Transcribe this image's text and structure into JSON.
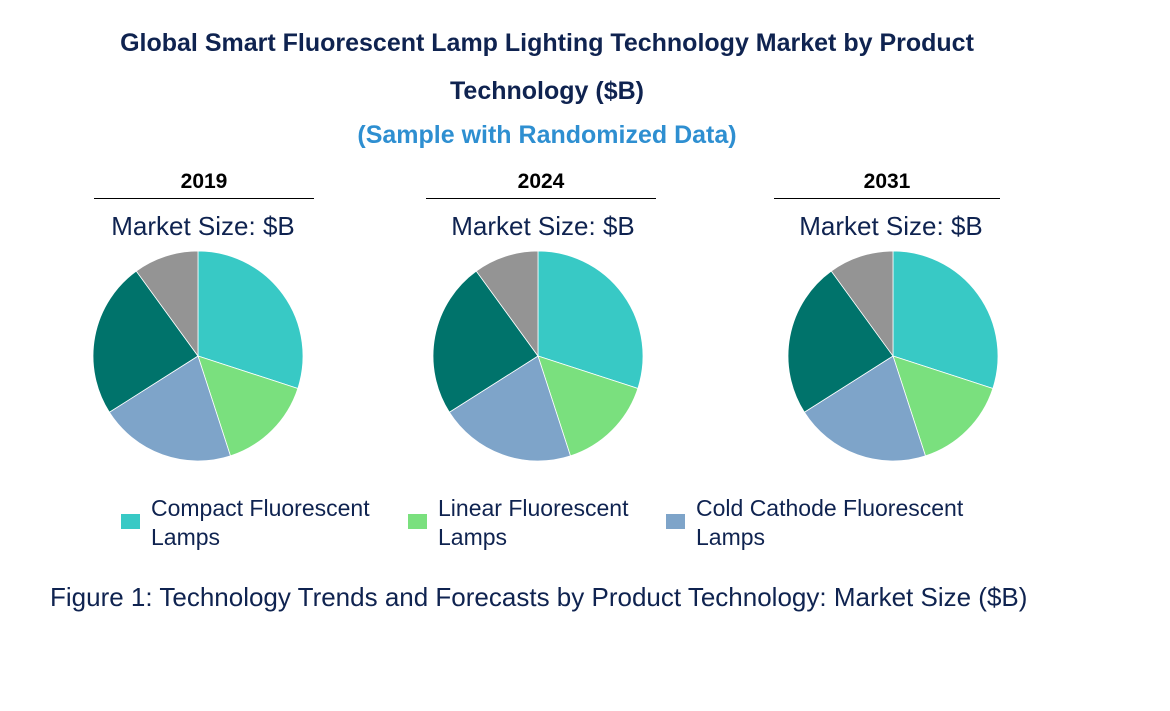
{
  "chart_data": {
    "type": "pie",
    "title_line1": "Global Smart Fluorescent Lamp Lighting Technology Market by Product",
    "title_line2": "Technology ($B)",
    "subtitle": "(Sample with Randomized Data)",
    "market_size_label": "Market Size: $B",
    "categories": [
      "Compact Fluorescent Lamps",
      "Linear Fluorescent Lamps",
      "Cold Cathode Fluorescent Lamps",
      "Other (unlabeled)",
      "Other (unlabeled)"
    ],
    "legend": [
      {
        "line1": "Compact Fluorescent",
        "line2": "Lamps",
        "color": "#38c9c5"
      },
      {
        "line1": "Linear Fluorescent",
        "line2": "Lamps",
        "color": "#7ae07e"
      },
      {
        "line1": "Cold Cathode Fluorescent",
        "line2": "Lamps",
        "color": "#7ea4c9"
      }
    ],
    "colors": [
      "#38c9c5",
      "#7ae07e",
      "#7ea4c9",
      "#00736b",
      "#949494"
    ],
    "pies": [
      {
        "year": "2019",
        "values": [
          30,
          15,
          21,
          24,
          10
        ]
      },
      {
        "year": "2024",
        "values": [
          30,
          15,
          21,
          24,
          10
        ]
      },
      {
        "year": "2031",
        "values": [
          30,
          15,
          21,
          24,
          10
        ]
      }
    ],
    "caption": "Figure 1: Technology Trends and Forecasts by Product Technology: Market Size ($B)"
  }
}
